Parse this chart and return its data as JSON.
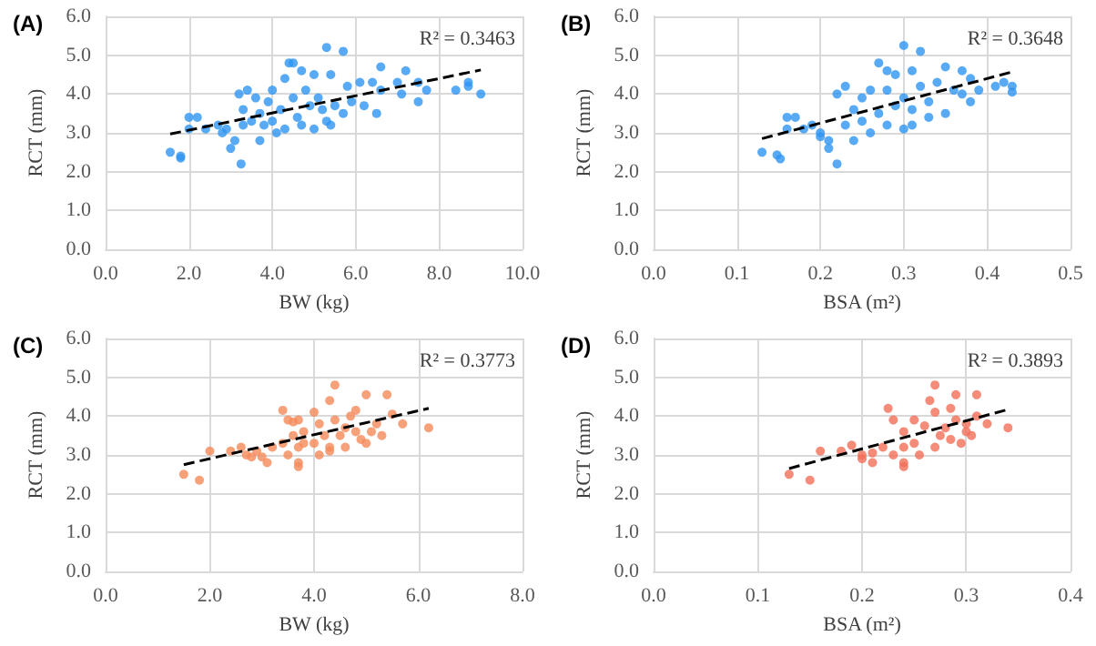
{
  "chart_data": [
    {
      "type": "scatter",
      "title": "(A)",
      "xlabel": "BW (kg)",
      "ylabel": "RCT (mm)",
      "annotations": [
        "R² = 0.3463"
      ],
      "marker": "circle",
      "grid": true,
      "xlim": [
        0,
        10
      ],
      "xticks": [
        {
          "value": 0,
          "label": "0.0"
        },
        {
          "value": 2,
          "label": "2.0"
        },
        {
          "value": 4,
          "label": "4.0"
        },
        {
          "value": 6,
          "label": "6.0"
        },
        {
          "value": 8,
          "label": "8.0"
        },
        {
          "value": 10,
          "label": "10.0"
        }
      ],
      "ylim": [
        0,
        6
      ],
      "yticks": [
        {
          "value": 0,
          "label": "0.0"
        },
        {
          "value": 1,
          "label": "1.0"
        },
        {
          "value": 2,
          "label": "2.0"
        },
        {
          "value": 3,
          "label": "3.0"
        },
        {
          "value": 4,
          "label": "4.0"
        },
        {
          "value": 5,
          "label": "5.0"
        },
        {
          "value": 6,
          "label": "6.0"
        }
      ],
      "series": [
        {
          "color": "#2f95f2",
          "x": [
            1.55,
            1.8,
            1.8,
            2.0,
            2.0,
            2.2,
            2.4,
            2.7,
            2.8,
            2.9,
            3.0,
            3.1,
            3.2,
            3.25,
            3.3,
            3.3,
            3.4,
            3.5,
            3.6,
            3.7,
            3.7,
            3.8,
            3.9,
            4.0,
            4.0,
            4.1,
            4.2,
            4.3,
            4.3,
            4.4,
            4.5,
            4.5,
            4.6,
            4.7,
            4.7,
            4.8,
            4.9,
            5.0,
            5.0,
            5.1,
            5.2,
            5.3,
            5.3,
            5.4,
            5.4,
            5.5,
            5.7,
            5.7,
            5.8,
            5.9,
            6.1,
            6.2,
            6.4,
            6.5,
            6.6,
            6.6,
            7.0,
            7.1,
            7.2,
            7.5,
            7.5,
            7.7,
            8.4,
            8.7,
            8.7,
            9.0
          ],
          "values": [
            2.5,
            2.4,
            2.35,
            3.4,
            3.1,
            3.4,
            3.1,
            3.2,
            3.0,
            3.1,
            2.6,
            2.8,
            4.0,
            2.2,
            3.2,
            3.6,
            4.1,
            3.3,
            3.9,
            2.8,
            3.5,
            3.2,
            3.8,
            4.1,
            3.3,
            3.0,
            3.6,
            4.4,
            3.1,
            4.8,
            4.8,
            3.9,
            3.4,
            4.6,
            3.2,
            4.1,
            3.7,
            4.5,
            3.1,
            3.9,
            3.6,
            5.2,
            3.3,
            4.5,
            3.2,
            3.7,
            5.1,
            3.5,
            4.2,
            3.8,
            4.3,
            3.7,
            4.3,
            3.5,
            4.7,
            4.1,
            4.3,
            4.0,
            4.6,
            3.8,
            4.3,
            4.1,
            4.1,
            4.3,
            4.2,
            4.0
          ]
        },
        {
          "type": "line",
          "color": "#000000",
          "line_style": "dashed",
          "marker": "none",
          "x": [
            1.55,
            9.0
          ],
          "values": [
            2.97,
            4.62
          ]
        }
      ]
    },
    {
      "type": "scatter",
      "title": "(B)",
      "xlabel": "BSA (m²)",
      "ylabel": "RCT (mm)",
      "annotations": [
        "R² = 0.3648"
      ],
      "marker": "circle",
      "grid": true,
      "xlim": [
        0,
        0.5
      ],
      "xticks": [
        {
          "value": 0,
          "label": "0.0"
        },
        0.1,
        0.2,
        0.3,
        0.4,
        0.5
      ],
      "ylim": [
        0,
        6
      ],
      "yticks": [
        {
          "value": 0,
          "label": "0.0"
        },
        {
          "value": 1,
          "label": "1.0"
        },
        {
          "value": 2,
          "label": "2.0"
        },
        {
          "value": 3,
          "label": "3.0"
        },
        {
          "value": 4,
          "label": "4.0"
        },
        {
          "value": 5,
          "label": "5.0"
        },
        {
          "value": 6,
          "label": "6.0"
        }
      ],
      "series": [
        {
          "color": "#2f95f2",
          "x": [
            0.13,
            0.148,
            0.152,
            0.16,
            0.16,
            0.17,
            0.18,
            0.19,
            0.2,
            0.2,
            0.21,
            0.21,
            0.22,
            0.22,
            0.23,
            0.23,
            0.24,
            0.24,
            0.25,
            0.25,
            0.26,
            0.26,
            0.27,
            0.27,
            0.28,
            0.28,
            0.28,
            0.29,
            0.29,
            0.3,
            0.3,
            0.3,
            0.31,
            0.31,
            0.31,
            0.32,
            0.32,
            0.33,
            0.33,
            0.34,
            0.35,
            0.35,
            0.36,
            0.37,
            0.37,
            0.38,
            0.38,
            0.39,
            0.41,
            0.42,
            0.43,
            0.43
          ],
          "values": [
            2.5,
            2.43,
            2.33,
            3.4,
            3.1,
            3.4,
            3.1,
            3.2,
            3.0,
            2.9,
            2.6,
            2.8,
            4.0,
            2.2,
            3.2,
            4.2,
            3.6,
            2.8,
            3.9,
            3.3,
            3.0,
            4.1,
            4.8,
            3.5,
            4.6,
            3.2,
            4.1,
            3.7,
            4.5,
            3.1,
            3.9,
            5.25,
            4.6,
            3.6,
            3.2,
            5.1,
            4.2,
            3.8,
            3.4,
            4.3,
            4.7,
            3.5,
            4.1,
            4.6,
            4.0,
            4.4,
            3.8,
            4.1,
            4.2,
            4.3,
            4.2,
            4.05
          ]
        },
        {
          "type": "line",
          "color": "#000000",
          "line_style": "dashed",
          "marker": "none",
          "x": [
            0.13,
            0.43
          ],
          "values": [
            2.85,
            4.57
          ]
        }
      ]
    },
    {
      "type": "scatter",
      "title": "(C)",
      "xlabel": "BW (kg)",
      "ylabel": "RCT (mm)",
      "annotations": [
        "R² = 0.3773"
      ],
      "marker": "circle",
      "grid": true,
      "xlim": [
        0,
        8
      ],
      "xticks": [
        {
          "value": 0,
          "label": "0.0"
        },
        {
          "value": 2,
          "label": "2.0"
        },
        {
          "value": 4,
          "label": "4.0"
        },
        {
          "value": 6,
          "label": "6.0"
        },
        {
          "value": 8,
          "label": "8.0"
        }
      ],
      "ylim": [
        0,
        6
      ],
      "yticks": [
        {
          "value": 0,
          "label": "0.0"
        },
        {
          "value": 1,
          "label": "1.0"
        },
        {
          "value": 2,
          "label": "2.0"
        },
        {
          "value": 3,
          "label": "3.0"
        },
        {
          "value": 4,
          "label": "4.0"
        },
        {
          "value": 5,
          "label": "5.0"
        },
        {
          "value": 6,
          "label": "6.0"
        }
      ],
      "series": [
        {
          "color": "#f5895a",
          "x": [
            1.5,
            1.8,
            2.0,
            2.4,
            2.6,
            2.7,
            2.8,
            2.9,
            3.0,
            3.1,
            3.2,
            3.4,
            3.4,
            3.5,
            3.5,
            3.6,
            3.6,
            3.7,
            3.7,
            3.7,
            3.7,
            3.8,
            3.8,
            4.0,
            4.0,
            4.1,
            4.1,
            4.2,
            4.3,
            4.3,
            4.3,
            4.4,
            4.4,
            4.5,
            4.6,
            4.6,
            4.7,
            4.8,
            4.8,
            4.9,
            5.0,
            5.0,
            5.1,
            5.2,
            5.3,
            5.4,
            5.5,
            5.7,
            6.2
          ],
          "values": [
            2.5,
            2.35,
            3.1,
            3.1,
            3.2,
            3.0,
            2.95,
            3.1,
            2.95,
            2.8,
            3.2,
            4.15,
            3.3,
            3.9,
            3.0,
            3.5,
            3.85,
            2.8,
            2.7,
            3.9,
            3.2,
            3.6,
            3.3,
            4.1,
            3.3,
            3.0,
            3.8,
            3.5,
            4.4,
            3.2,
            3.1,
            4.8,
            3.9,
            3.5,
            3.7,
            3.2,
            4.0,
            4.15,
            3.6,
            3.4,
            4.55,
            3.3,
            3.6,
            3.8,
            3.5,
            4.55,
            4.05,
            3.8,
            3.7
          ]
        },
        {
          "type": "line",
          "color": "#000000",
          "line_style": "dashed",
          "marker": "none",
          "x": [
            1.5,
            6.2
          ],
          "values": [
            2.75,
            4.2
          ]
        }
      ]
    },
    {
      "type": "scatter",
      "title": "(D)",
      "xlabel": "BSA (m²)",
      "ylabel": "RCT (mm)",
      "annotations": [
        "R² = 0.3893"
      ],
      "marker": "circle",
      "grid": true,
      "xlim": [
        0,
        0.4
      ],
      "xticks": [
        {
          "value": 0,
          "label": "0.0"
        },
        0.1,
        0.2,
        0.3,
        0.4
      ],
      "ylim": [
        0,
        6
      ],
      "yticks": [
        {
          "value": 0,
          "label": "0.0"
        },
        {
          "value": 1,
          "label": "1.0"
        },
        {
          "value": 2,
          "label": "2.0"
        },
        {
          "value": 3,
          "label": "3.0"
        },
        {
          "value": 4,
          "label": "4.0"
        },
        {
          "value": 5,
          "label": "5.0"
        },
        {
          "value": 6,
          "label": "6.0"
        }
      ],
      "series": [
        {
          "color": "#f26e58",
          "x": [
            0.13,
            0.15,
            0.16,
            0.18,
            0.19,
            0.2,
            0.2,
            0.21,
            0.21,
            0.22,
            0.225,
            0.23,
            0.23,
            0.24,
            0.24,
            0.24,
            0.24,
            0.25,
            0.25,
            0.255,
            0.26,
            0.265,
            0.27,
            0.27,
            0.27,
            0.275,
            0.28,
            0.285,
            0.285,
            0.29,
            0.29,
            0.295,
            0.3,
            0.3,
            0.305,
            0.31,
            0.31,
            0.32,
            0.34
          ],
          "values": [
            2.5,
            2.35,
            3.1,
            3.1,
            3.25,
            3.0,
            2.9,
            3.05,
            2.8,
            3.2,
            4.2,
            3.0,
            3.9,
            2.8,
            2.7,
            3.6,
            3.2,
            3.9,
            3.3,
            3.0,
            3.75,
            4.4,
            4.8,
            3.2,
            4.1,
            3.5,
            3.7,
            4.2,
            3.4,
            3.9,
            4.55,
            3.3,
            3.6,
            3.8,
            3.5,
            4.55,
            4.0,
            3.8,
            3.7
          ]
        },
        {
          "type": "line",
          "color": "#000000",
          "line_style": "dashed",
          "marker": "none",
          "x": [
            0.13,
            0.34
          ],
          "values": [
            2.65,
            4.17
          ]
        }
      ]
    }
  ]
}
